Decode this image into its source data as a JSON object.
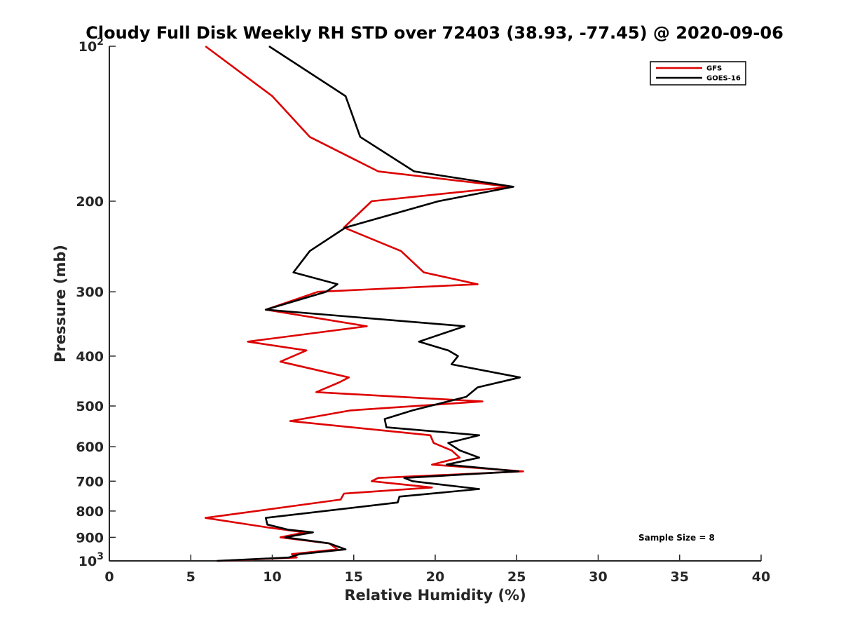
{
  "chart_data": {
    "type": "line",
    "title": "Cloudy Full Disk Weekly RH STD over 72403 (38.93, -77.45) @ 2020-09-06",
    "xlabel": "Relative Humidity (%)",
    "ylabel": "Pressure (mb)",
    "xlim": [
      0,
      40
    ],
    "ylim": [
      100,
      1000
    ],
    "y_scale": "log",
    "y_reversed": true,
    "grid": false,
    "legend_position": "top-right",
    "x_ticks": [
      "0",
      "5",
      "10",
      "15",
      "20",
      "25",
      "30",
      "35",
      "40"
    ],
    "y_ticks": [
      {
        "value": 100,
        "base": "10",
        "exp": "2"
      },
      {
        "value": 200,
        "label": "200"
      },
      {
        "value": 300,
        "label": "300"
      },
      {
        "value": 400,
        "label": "400"
      },
      {
        "value": 500,
        "label": "500"
      },
      {
        "value": 600,
        "label": "600"
      },
      {
        "value": 700,
        "label": "700"
      },
      {
        "value": 800,
        "label": "800"
      },
      {
        "value": 900,
        "label": "900"
      },
      {
        "value": 1000,
        "base": "10",
        "exp": "3"
      }
    ],
    "annotation": "Sample Size = 8",
    "series": [
      {
        "name": "GFS",
        "color": "#dd0000",
        "points": [
          [
            5.9,
            100
          ],
          [
            10.0,
            125
          ],
          [
            12.3,
            150
          ],
          [
            16.5,
            175
          ],
          [
            24.6,
            187.5
          ],
          [
            16.1,
            200
          ],
          [
            14.4,
            225
          ],
          [
            17.9,
            250
          ],
          [
            19.3,
            275
          ],
          [
            22.6,
            290
          ],
          [
            12.8,
            300
          ],
          [
            9.6,
            325
          ],
          [
            15.8,
            350
          ],
          [
            8.5,
            375
          ],
          [
            12.1,
            390
          ],
          [
            10.5,
            410
          ],
          [
            14.7,
            440
          ],
          [
            14.1,
            450
          ],
          [
            12.7,
            470
          ],
          [
            22.9,
            490
          ],
          [
            14.8,
            510
          ],
          [
            11.1,
            535
          ],
          [
            19.7,
            570
          ],
          [
            19.9,
            590
          ],
          [
            21.0,
            610
          ],
          [
            21.5,
            630
          ],
          [
            19.8,
            650
          ],
          [
            25.4,
            670
          ],
          [
            16.5,
            690
          ],
          [
            16.1,
            700
          ],
          [
            19.8,
            720
          ],
          [
            14.4,
            740
          ],
          [
            14.2,
            760
          ],
          [
            5.9,
            825
          ],
          [
            9.6,
            860
          ],
          [
            12.0,
            880
          ],
          [
            10.5,
            900
          ],
          [
            13.5,
            925
          ],
          [
            14.0,
            950
          ],
          [
            11.2,
            970
          ],
          [
            11.5,
            985
          ],
          [
            6.7,
            1000
          ]
        ]
      },
      {
        "name": "GOES-16",
        "color": "#000000",
        "points": [
          [
            9.8,
            100
          ],
          [
            14.5,
            125
          ],
          [
            15.4,
            150
          ],
          [
            18.7,
            175
          ],
          [
            24.8,
            187.5
          ],
          [
            20.2,
            200
          ],
          [
            14.5,
            225
          ],
          [
            12.3,
            250
          ],
          [
            11.3,
            275
          ],
          [
            14.0,
            290
          ],
          [
            13.3,
            300
          ],
          [
            9.6,
            325
          ],
          [
            21.8,
            350
          ],
          [
            19.0,
            375
          ],
          [
            20.8,
            390
          ],
          [
            21.4,
            400
          ],
          [
            21.0,
            415
          ],
          [
            25.2,
            440
          ],
          [
            22.6,
            460
          ],
          [
            21.9,
            480
          ],
          [
            18.6,
            510
          ],
          [
            16.9,
            530
          ],
          [
            17.0,
            550
          ],
          [
            22.7,
            570
          ],
          [
            20.8,
            590
          ],
          [
            21.5,
            610
          ],
          [
            22.7,
            630
          ],
          [
            20.7,
            650
          ],
          [
            25.1,
            670
          ],
          [
            18.1,
            690
          ],
          [
            18.6,
            700
          ],
          [
            22.7,
            725
          ],
          [
            17.8,
            750
          ],
          [
            17.7,
            770
          ],
          [
            9.6,
            825
          ],
          [
            9.7,
            850
          ],
          [
            11.0,
            870
          ],
          [
            12.5,
            880
          ],
          [
            10.8,
            900
          ],
          [
            13.5,
            925
          ],
          [
            14.5,
            950
          ],
          [
            11.7,
            970
          ],
          [
            11.0,
            985
          ],
          [
            6.6,
            1000
          ]
        ]
      }
    ]
  }
}
